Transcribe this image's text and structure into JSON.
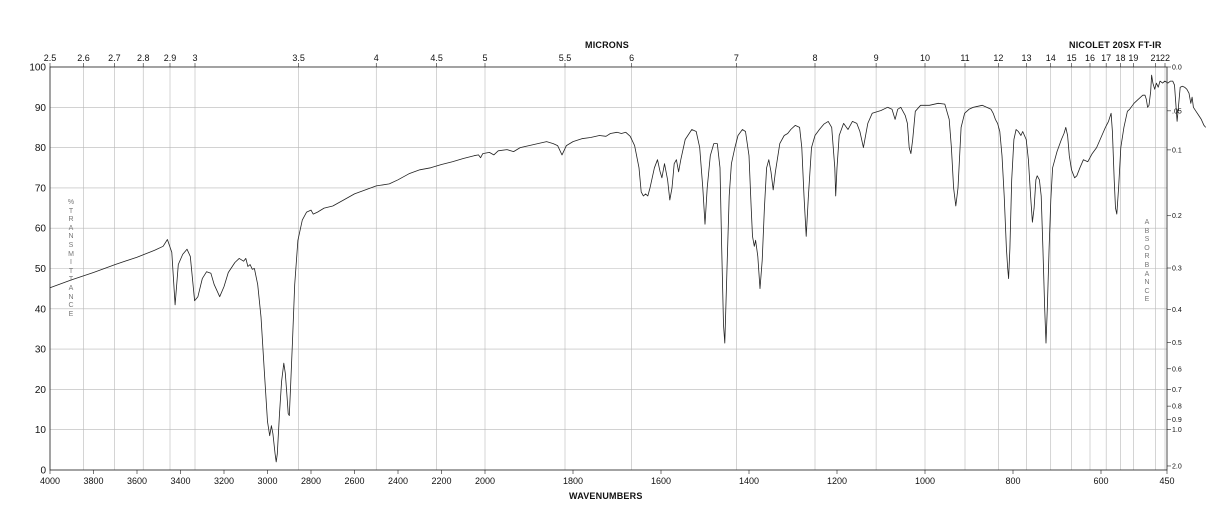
{
  "header": {
    "top_title": "MICRONS",
    "bottom_title": "WAVENUMBERS",
    "instrument": "NICOLET 20SX FT-IR"
  },
  "left_axis_label": "%\nT\nR\nA\nN\nS\nM\nI\nT\nT\nA\nN\nC\nE",
  "right_axis_label": "A\nB\nS\nO\nR\nB\nA\nN\nC\nE",
  "chart_data": {
    "type": "line",
    "x_axis": {
      "label": "WAVENUMBERS",
      "segments": [
        [
          4000,
          2000
        ],
        [
          2000,
          450
        ]
      ],
      "ticks": [
        4000,
        3800,
        3600,
        3400,
        3200,
        3000,
        2800,
        2600,
        2400,
        2200,
        2000,
        1800,
        1600,
        1400,
        1200,
        1000,
        800,
        600,
        450
      ]
    },
    "top_axis": {
      "label": "MICRONS",
      "ticks": [
        "2.5",
        "2.6",
        "2.7",
        "2.8",
        "2.9",
        "3",
        "3.5",
        "4",
        "4.5",
        "5",
        "5.5",
        "6",
        "7",
        "8",
        "9",
        "10",
        "11",
        "12",
        "13",
        "14",
        "15",
        "16",
        "17",
        "18",
        "19",
        "21",
        "22"
      ]
    },
    "y_axis": {
      "label": "% TRANSMITTANCE",
      "ylim": [
        0,
        100
      ],
      "ticks": [
        0,
        10,
        20,
        30,
        40,
        50,
        60,
        70,
        80,
        90,
        100
      ]
    },
    "right_axis": {
      "label": "ABSORBANCE",
      "ticks": [
        "0.0",
        ".05",
        "0.1",
        "0.2",
        "0.3",
        "0.4",
        "0.5",
        "0.6",
        "0.7",
        "0.8",
        "0.9",
        "1.0",
        "2.0"
      ]
    },
    "grid": true,
    "series": [
      {
        "points": [
          [
            4000,
            45.2
          ],
          [
            3900,
            47.2
          ],
          [
            3800,
            49
          ],
          [
            3700,
            51
          ],
          [
            3600,
            52.8
          ],
          [
            3520,
            54.5
          ],
          [
            3480,
            55.5
          ],
          [
            3460,
            57.2
          ],
          [
            3440,
            54
          ],
          [
            3425,
            41
          ],
          [
            3410,
            51
          ],
          [
            3390,
            53.5
          ],
          [
            3370,
            54.8
          ],
          [
            3355,
            53
          ],
          [
            3335,
            42
          ],
          [
            3320,
            43
          ],
          [
            3300,
            47.5
          ],
          [
            3280,
            49.2
          ],
          [
            3260,
            48.8
          ],
          [
            3245,
            46
          ],
          [
            3220,
            43
          ],
          [
            3200,
            45.5
          ],
          [
            3180,
            49
          ],
          [
            3150,
            51.5
          ],
          [
            3130,
            52.5
          ],
          [
            3110,
            51.8
          ],
          [
            3100,
            52.5
          ],
          [
            3090,
            50.5
          ],
          [
            3080,
            51
          ],
          [
            3070,
            49.8
          ],
          [
            3060,
            50
          ],
          [
            3045,
            46
          ],
          [
            3030,
            38
          ],
          [
            3015,
            25
          ],
          [
            3000,
            12
          ],
          [
            2990,
            8.5
          ],
          [
            2982,
            11
          ],
          [
            2975,
            9
          ],
          [
            2965,
            4
          ],
          [
            2960,
            2
          ],
          [
            2955,
            4
          ],
          [
            2945,
            14
          ],
          [
            2935,
            22
          ],
          [
            2925,
            26.5
          ],
          [
            2918,
            24
          ],
          [
            2910,
            18
          ],
          [
            2905,
            14
          ],
          [
            2900,
            13.5
          ],
          [
            2895,
            19
          ],
          [
            2885,
            32
          ],
          [
            2875,
            46
          ],
          [
            2860,
            57
          ],
          [
            2840,
            62
          ],
          [
            2820,
            64
          ],
          [
            2800,
            64.5
          ],
          [
            2790,
            63.5
          ],
          [
            2770,
            64
          ],
          [
            2740,
            65
          ],
          [
            2700,
            65.5
          ],
          [
            2650,
            67
          ],
          [
            2600,
            68.5
          ],
          [
            2550,
            69.5
          ],
          [
            2500,
            70.5
          ],
          [
            2440,
            71
          ],
          [
            2400,
            72
          ],
          [
            2350,
            73.5
          ],
          [
            2300,
            74.5
          ],
          [
            2250,
            75
          ],
          [
            2200,
            75.8
          ],
          [
            2150,
            76.5
          ],
          [
            2100,
            77.3
          ],
          [
            2050,
            78
          ],
          [
            2030,
            78.2
          ],
          [
            2020,
            77.5
          ],
          [
            2010,
            78.5
          ],
          [
            1990,
            78.8
          ],
          [
            1980,
            78.2
          ],
          [
            1970,
            79.2
          ],
          [
            1950,
            79.5
          ],
          [
            1935,
            79
          ],
          [
            1920,
            80
          ],
          [
            1900,
            80.5
          ],
          [
            1880,
            81
          ],
          [
            1860,
            81.5
          ],
          [
            1845,
            81
          ],
          [
            1835,
            80.5
          ],
          [
            1825,
            78.2
          ],
          [
            1815,
            80.5
          ],
          [
            1800,
            81.5
          ],
          [
            1780,
            82.2
          ],
          [
            1760,
            82.5
          ],
          [
            1740,
            83
          ],
          [
            1725,
            82.8
          ],
          [
            1715,
            83.5
          ],
          [
            1700,
            83.8
          ],
          [
            1690,
            83.5
          ],
          [
            1680,
            83.8
          ],
          [
            1670,
            82.8
          ],
          [
            1660,
            80.5
          ],
          [
            1650,
            75
          ],
          [
            1645,
            69
          ],
          [
            1640,
            68
          ],
          [
            1635,
            68.5
          ],
          [
            1630,
            68
          ],
          [
            1625,
            70
          ],
          [
            1615,
            75
          ],
          [
            1608,
            77
          ],
          [
            1602,
            74
          ],
          [
            1598,
            72.5
          ],
          [
            1592,
            76
          ],
          [
            1585,
            72
          ],
          [
            1580,
            67
          ],
          [
            1575,
            70
          ],
          [
            1570,
            76
          ],
          [
            1565,
            77
          ],
          [
            1560,
            74
          ],
          [
            1555,
            77
          ],
          [
            1545,
            82
          ],
          [
            1530,
            84.5
          ],
          [
            1520,
            84
          ],
          [
            1512,
            80
          ],
          [
            1505,
            70
          ],
          [
            1500,
            61
          ],
          [
            1495,
            70
          ],
          [
            1488,
            78
          ],
          [
            1480,
            81
          ],
          [
            1472,
            81
          ],
          [
            1466,
            75
          ],
          [
            1462,
            55
          ],
          [
            1458,
            36
          ],
          [
            1455,
            31.5
          ],
          [
            1450,
            50
          ],
          [
            1445,
            68
          ],
          [
            1440,
            76
          ],
          [
            1432,
            80
          ],
          [
            1425,
            83
          ],
          [
            1415,
            84.5
          ],
          [
            1408,
            84
          ],
          [
            1400,
            78
          ],
          [
            1395,
            65
          ],
          [
            1392,
            58
          ],
          [
            1388,
            55.5
          ],
          [
            1385,
            57
          ],
          [
            1380,
            53
          ],
          [
            1375,
            45
          ],
          [
            1370,
            52
          ],
          [
            1365,
            65
          ],
          [
            1360,
            75
          ],
          [
            1355,
            77
          ],
          [
            1350,
            74
          ],
          [
            1345,
            69.5
          ],
          [
            1340,
            74
          ],
          [
            1330,
            81
          ],
          [
            1320,
            83
          ],
          [
            1312,
            83.5
          ],
          [
            1305,
            84.5
          ],
          [
            1295,
            85.5
          ],
          [
            1285,
            85
          ],
          [
            1280,
            80
          ],
          [
            1275,
            68
          ],
          [
            1270,
            58
          ],
          [
            1265,
            68
          ],
          [
            1258,
            80
          ],
          [
            1250,
            83
          ],
          [
            1240,
            84.5
          ],
          [
            1230,
            85.8
          ],
          [
            1220,
            86.5
          ],
          [
            1212,
            85
          ],
          [
            1205,
            75
          ],
          [
            1203,
            68
          ],
          [
            1200,
            75
          ],
          [
            1195,
            83
          ],
          [
            1185,
            86
          ],
          [
            1175,
            84.5
          ],
          [
            1165,
            86.5
          ],
          [
            1155,
            86
          ],
          [
            1148,
            84
          ],
          [
            1140,
            80
          ],
          [
            1130,
            86
          ],
          [
            1120,
            88.5
          ],
          [
            1100,
            89.2
          ],
          [
            1085,
            90
          ],
          [
            1075,
            89.5
          ],
          [
            1068,
            87
          ],
          [
            1062,
            89.5
          ],
          [
            1055,
            90
          ],
          [
            1045,
            88
          ],
          [
            1040,
            86
          ],
          [
            1036,
            80
          ],
          [
            1032,
            78.5
          ],
          [
            1028,
            82
          ],
          [
            1022,
            89
          ],
          [
            1010,
            90.5
          ],
          [
            990,
            90.5
          ],
          [
            970,
            91
          ],
          [
            955,
            90.8
          ],
          [
            945,
            87
          ],
          [
            940,
            80
          ],
          [
            935,
            70
          ],
          [
            930,
            65.5
          ],
          [
            925,
            70
          ],
          [
            918,
            85
          ],
          [
            910,
            88.5
          ],
          [
            900,
            89.5
          ],
          [
            890,
            90
          ],
          [
            870,
            90.5
          ],
          [
            860,
            90
          ],
          [
            850,
            89.5
          ],
          [
            845,
            88.5
          ],
          [
            840,
            87
          ],
          [
            835,
            86
          ],
          [
            830,
            84
          ],
          [
            825,
            78
          ],
          [
            820,
            68
          ],
          [
            815,
            55
          ],
          [
            812,
            50
          ],
          [
            810,
            47.5
          ],
          [
            807,
            55
          ],
          [
            803,
            72
          ],
          [
            798,
            82
          ],
          [
            793,
            84.5
          ],
          [
            788,
            84
          ],
          [
            782,
            83
          ],
          [
            778,
            84
          ],
          [
            770,
            82
          ],
          [
            765,
            77
          ],
          [
            760,
            68
          ],
          [
            756,
            61.5
          ],
          [
            752,
            65
          ],
          [
            748,
            72
          ],
          [
            745,
            73
          ],
          [
            740,
            72
          ],
          [
            736,
            68
          ],
          [
            732,
            55
          ],
          [
            728,
            40
          ],
          [
            725,
            31.5
          ],
          [
            722,
            40
          ],
          [
            718,
            55
          ],
          [
            714,
            67
          ],
          [
            710,
            75
          ],
          [
            700,
            79
          ],
          [
            690,
            82
          ],
          [
            684,
            83.5
          ],
          [
            680,
            85
          ],
          [
            676,
            83
          ],
          [
            672,
            78
          ],
          [
            667,
            74.5
          ],
          [
            660,
            72.5
          ],
          [
            655,
            73
          ],
          [
            648,
            75
          ],
          [
            640,
            77
          ],
          [
            630,
            76.5
          ],
          [
            620,
            78.5
          ],
          [
            610,
            80
          ],
          [
            600,
            82.5
          ],
          [
            590,
            85
          ],
          [
            583,
            86.5
          ],
          [
            577,
            88.5
          ],
          [
            574,
            84
          ],
          [
            570,
            72
          ],
          [
            567,
            65
          ],
          [
            564,
            63.5
          ],
          [
            560,
            70
          ],
          [
            555,
            80
          ],
          [
            548,
            85
          ],
          [
            540,
            89
          ],
          [
            535,
            89.5
          ],
          [
            525,
            91
          ],
          [
            515,
            92
          ],
          [
            505,
            93
          ],
          [
            500,
            93
          ],
          [
            497,
            92
          ],
          [
            494,
            90
          ],
          [
            491,
            90.5
          ],
          [
            487,
            94
          ],
          [
            485,
            98
          ],
          [
            482,
            96
          ],
          [
            478,
            94.5
          ],
          [
            474,
            96
          ],
          [
            470,
            95
          ],
          [
            466,
            96.5
          ],
          [
            460,
            96
          ],
          [
            455,
            96.5
          ],
          [
            448,
            96
          ],
          [
            442,
            96.5
          ],
          [
            437,
            96.5
          ],
          [
            433,
            95.5
          ],
          [
            430,
            91
          ],
          [
            427,
            86.5
          ],
          [
            424,
            90
          ],
          [
            420,
            95
          ],
          [
            415,
            95.2
          ],
          [
            410,
            95
          ],
          [
            405,
            94.5
          ],
          [
            400,
            93.5
          ],
          [
            396,
            91
          ],
          [
            393,
            92.5
          ],
          [
            390,
            90
          ],
          [
            384,
            89
          ],
          [
            378,
            88
          ],
          [
            372,
            87
          ],
          [
            366,
            85.5
          ],
          [
            362,
            85
          ]
        ]
      }
    ]
  }
}
